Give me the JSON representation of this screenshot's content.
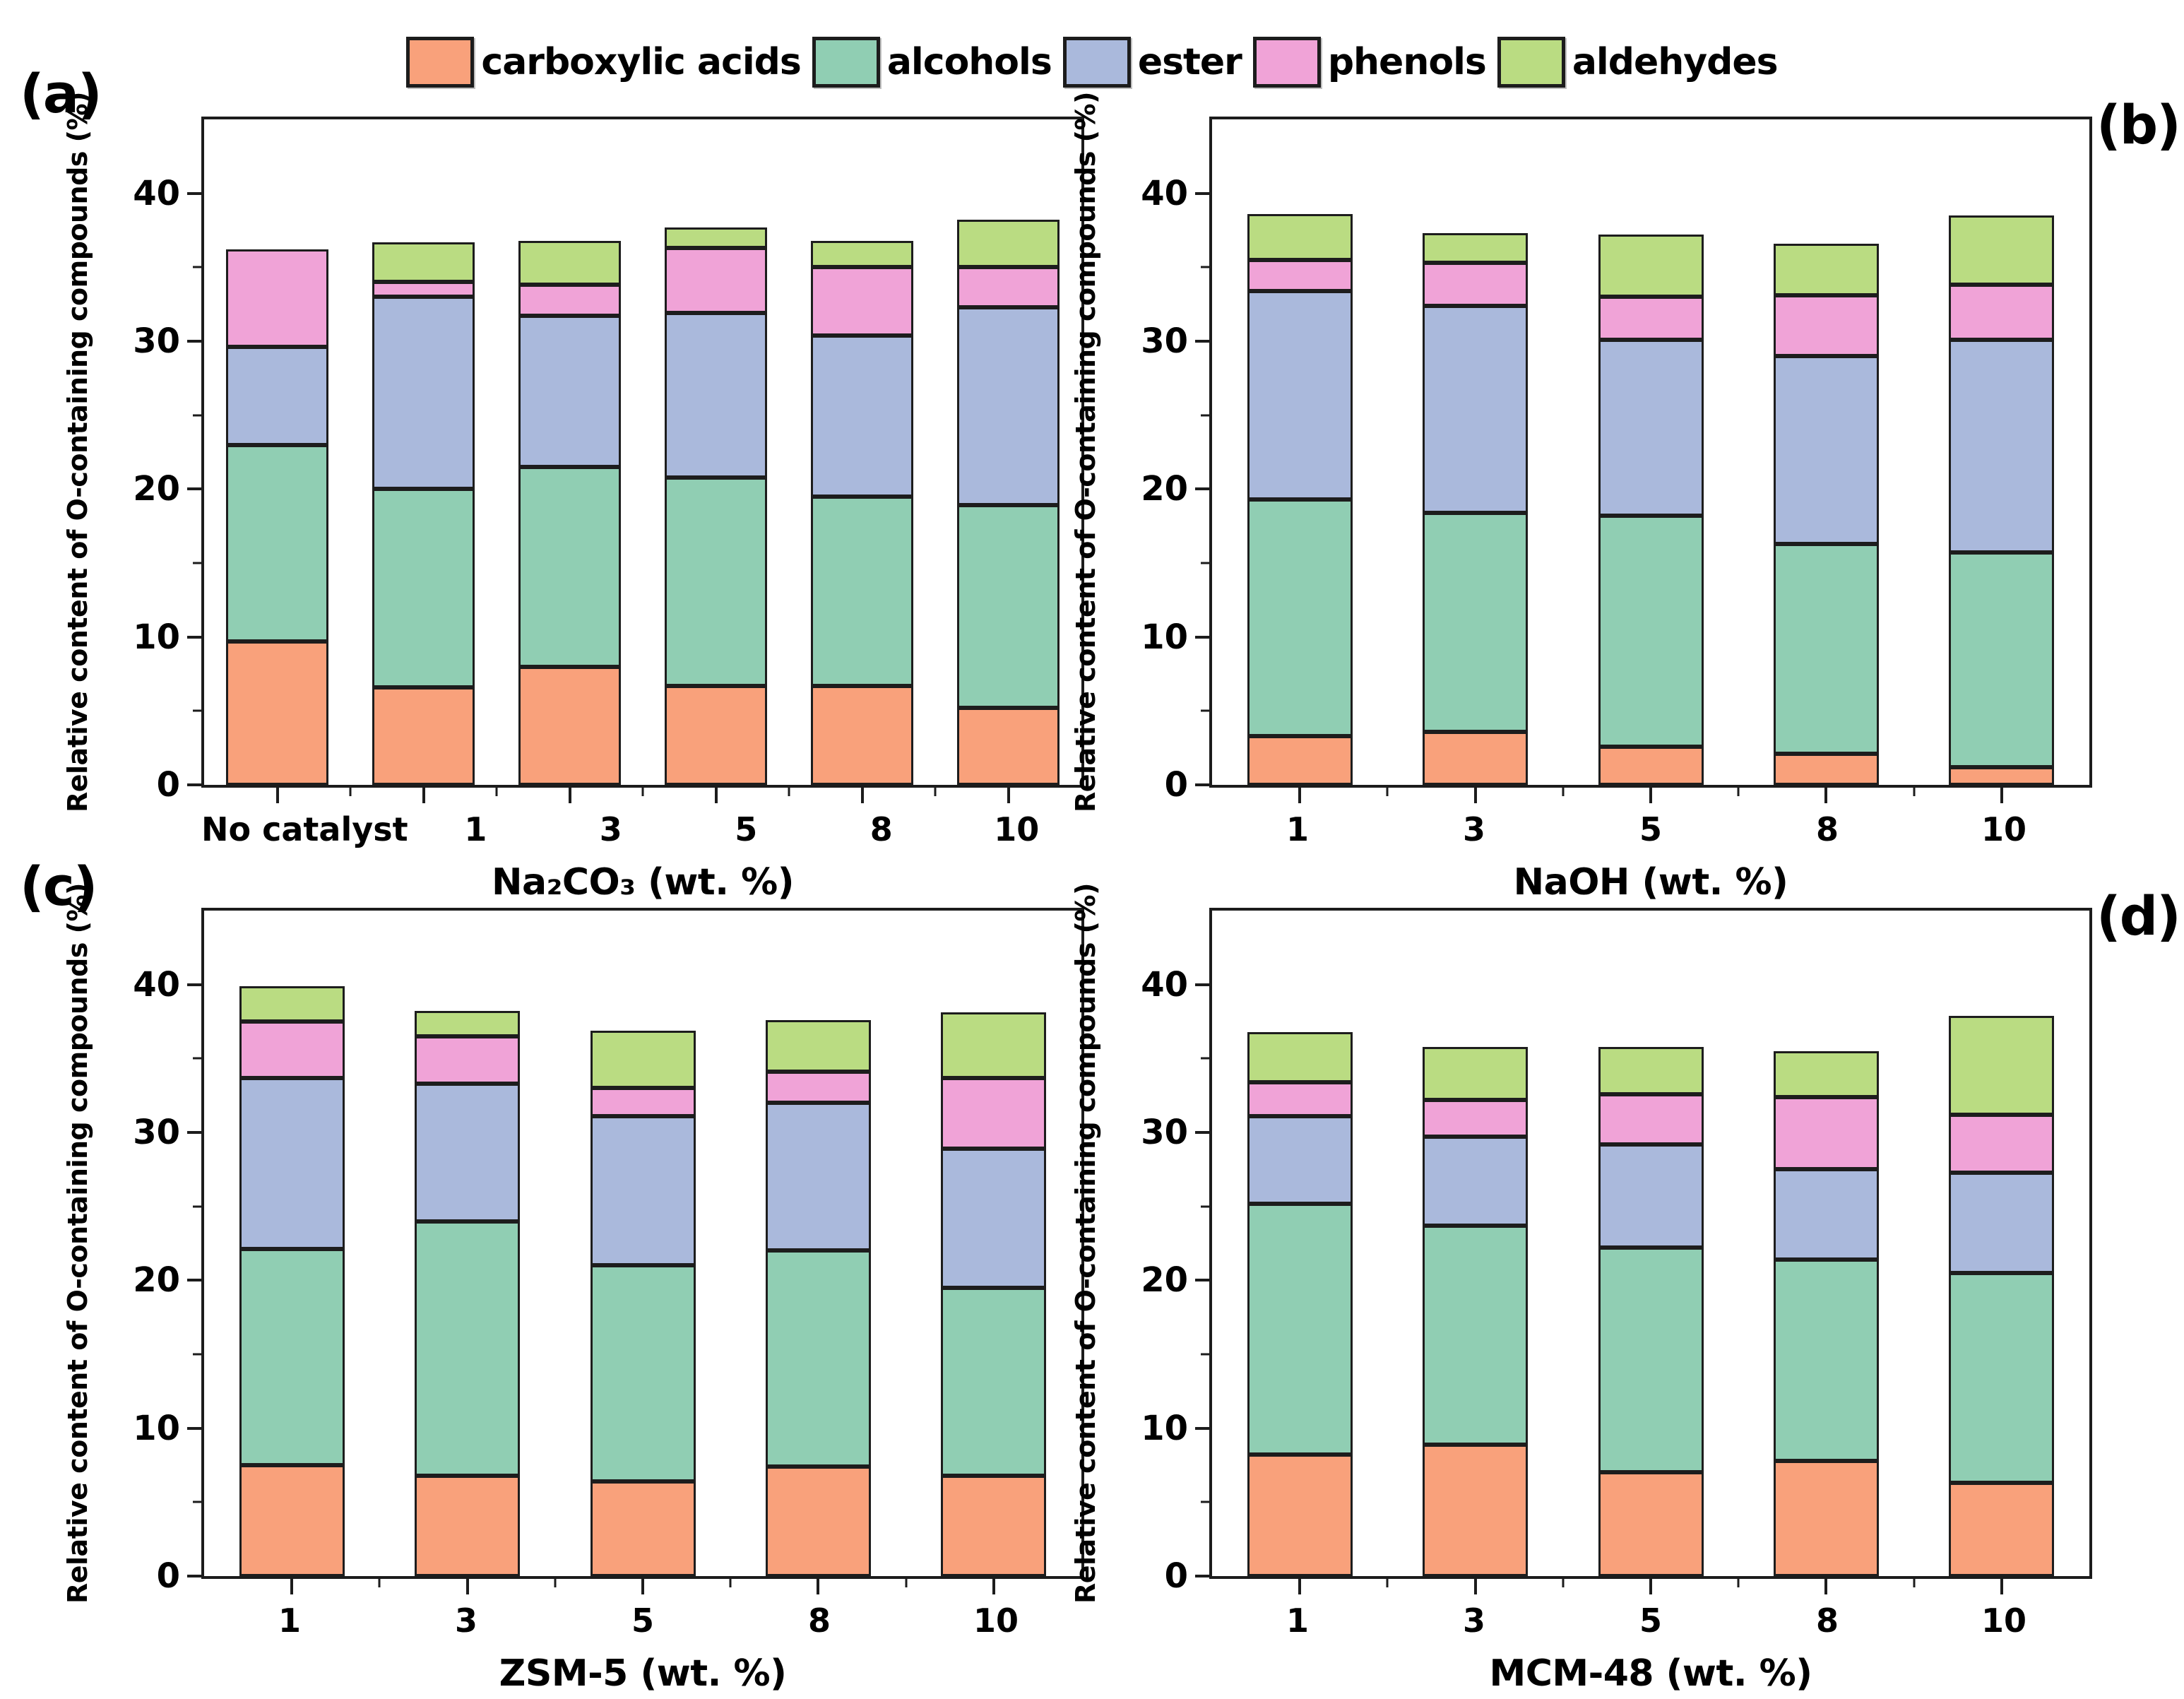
{
  "figure": {
    "ylabel": "Relative content of O-containing compounds (%)",
    "axis_color": "#1c1c1c",
    "background": "#ffffff"
  },
  "legend": {
    "items": [
      {
        "label": "carboxylic acids",
        "color": "#F9A17B"
      },
      {
        "label": "alcohols",
        "color": "#90CEB3"
      },
      {
        "label": "ester",
        "color": "#AAB9DC"
      },
      {
        "label": "phenols",
        "color": "#F0A3D7"
      },
      {
        "label": "aldehydes",
        "color": "#BADC82"
      }
    ]
  },
  "chart_data": [
    {
      "type": "bar",
      "stacked": true,
      "panel_label": "(a)",
      "title": "",
      "xlabel": "Na₂CO₃ (wt. %)",
      "ylabel": "Relative content of O-containing compounds (%)",
      "categories": [
        "No catalyst",
        "1",
        "3",
        "5",
        "8",
        "10"
      ],
      "ylim": [
        0,
        45
      ],
      "yticks": [
        0,
        10,
        20,
        30,
        40
      ],
      "yticks_minor": [
        5,
        15,
        25,
        35
      ],
      "grid": false,
      "legend_position": "top",
      "series": [
        {
          "name": "carboxylic acids",
          "color": "#F9A17B",
          "values": [
            9.7,
            6.6,
            8.0,
            6.7,
            6.7,
            5.2
          ]
        },
        {
          "name": "alcohols",
          "color": "#90CEB3",
          "values": [
            13.3,
            13.4,
            13.5,
            14.1,
            12.8,
            13.7
          ]
        },
        {
          "name": "ester",
          "color": "#AAB9DC",
          "values": [
            6.6,
            13.0,
            10.2,
            11.1,
            10.9,
            13.4
          ]
        },
        {
          "name": "phenols",
          "color": "#F0A3D7",
          "values": [
            6.6,
            1.0,
            2.1,
            4.4,
            4.6,
            2.7
          ]
        },
        {
          "name": "aldehydes",
          "color": "#BADC82",
          "values": [
            0,
            2.7,
            3.0,
            1.4,
            1.8,
            3.2
          ]
        }
      ]
    },
    {
      "type": "bar",
      "stacked": true,
      "panel_label": "(b)",
      "title": "",
      "xlabel": "NaOH (wt. %)",
      "ylabel": "Relative content of O-containing compounds (%)",
      "categories": [
        "1",
        "3",
        "5",
        "8",
        "10"
      ],
      "ylim": [
        0,
        45
      ],
      "yticks": [
        0,
        10,
        20,
        30,
        40
      ],
      "yticks_minor": [
        5,
        15,
        25,
        35
      ],
      "grid": false,
      "legend_position": "top",
      "series": [
        {
          "name": "carboxylic acids",
          "color": "#F9A17B",
          "values": [
            3.3,
            3.6,
            2.6,
            2.1,
            1.2
          ]
        },
        {
          "name": "alcohols",
          "color": "#90CEB3",
          "values": [
            16.0,
            14.8,
            15.6,
            14.2,
            14.5
          ]
        },
        {
          "name": "ester",
          "color": "#AAB9DC",
          "values": [
            14.1,
            14.0,
            11.9,
            12.7,
            14.4
          ]
        },
        {
          "name": "phenols",
          "color": "#F0A3D7",
          "values": [
            2.1,
            2.9,
            2.9,
            4.1,
            3.7
          ]
        },
        {
          "name": "aldehydes",
          "color": "#BADC82",
          "values": [
            3.1,
            2.0,
            4.2,
            3.5,
            4.7
          ]
        }
      ]
    },
    {
      "type": "bar",
      "stacked": true,
      "panel_label": "(c)",
      "title": "",
      "xlabel": "ZSM-5 (wt. %)",
      "ylabel": "Relative content of O-containing compounds (%)",
      "categories": [
        "1",
        "3",
        "5",
        "8",
        "10"
      ],
      "ylim": [
        0,
        45
      ],
      "yticks": [
        0,
        10,
        20,
        30,
        40
      ],
      "yticks_minor": [
        5,
        15,
        25,
        35
      ],
      "grid": false,
      "legend_position": "top",
      "series": [
        {
          "name": "carboxylic acids",
          "color": "#F9A17B",
          "values": [
            7.5,
            6.8,
            6.4,
            7.4,
            6.8
          ]
        },
        {
          "name": "alcohols",
          "color": "#90CEB3",
          "values": [
            14.6,
            17.2,
            14.6,
            14.6,
            12.7
          ]
        },
        {
          "name": "ester",
          "color": "#AAB9DC",
          "values": [
            11.6,
            9.3,
            10.1,
            10.0,
            9.4
          ]
        },
        {
          "name": "phenols",
          "color": "#F0A3D7",
          "values": [
            3.8,
            3.2,
            1.9,
            2.1,
            4.8
          ]
        },
        {
          "name": "aldehydes",
          "color": "#BADC82",
          "values": [
            2.4,
            1.7,
            3.9,
            3.5,
            4.4
          ]
        }
      ]
    },
    {
      "type": "bar",
      "stacked": true,
      "panel_label": "(d)",
      "title": "",
      "xlabel": "MCM-48 (wt. %)",
      "ylabel": "Relative content of O-containing compounds (%)",
      "categories": [
        "1",
        "3",
        "5",
        "8",
        "10"
      ],
      "ylim": [
        0,
        45
      ],
      "yticks": [
        0,
        10,
        20,
        30,
        40
      ],
      "yticks_minor": [
        5,
        15,
        25,
        35
      ],
      "grid": false,
      "legend_position": "top",
      "series": [
        {
          "name": "carboxylic acids",
          "color": "#F9A17B",
          "values": [
            8.2,
            8.9,
            7.0,
            7.8,
            6.3
          ]
        },
        {
          "name": "alcohols",
          "color": "#90CEB3",
          "values": [
            17.0,
            14.8,
            15.2,
            13.6,
            14.2
          ]
        },
        {
          "name": "ester",
          "color": "#AAB9DC",
          "values": [
            5.9,
            6.0,
            7.0,
            6.1,
            6.8
          ]
        },
        {
          "name": "phenols",
          "color": "#F0A3D7",
          "values": [
            2.3,
            2.5,
            3.4,
            4.9,
            3.9
          ]
        },
        {
          "name": "aldehydes",
          "color": "#BADC82",
          "values": [
            3.4,
            3.6,
            3.2,
            3.1,
            6.7
          ]
        }
      ]
    }
  ]
}
